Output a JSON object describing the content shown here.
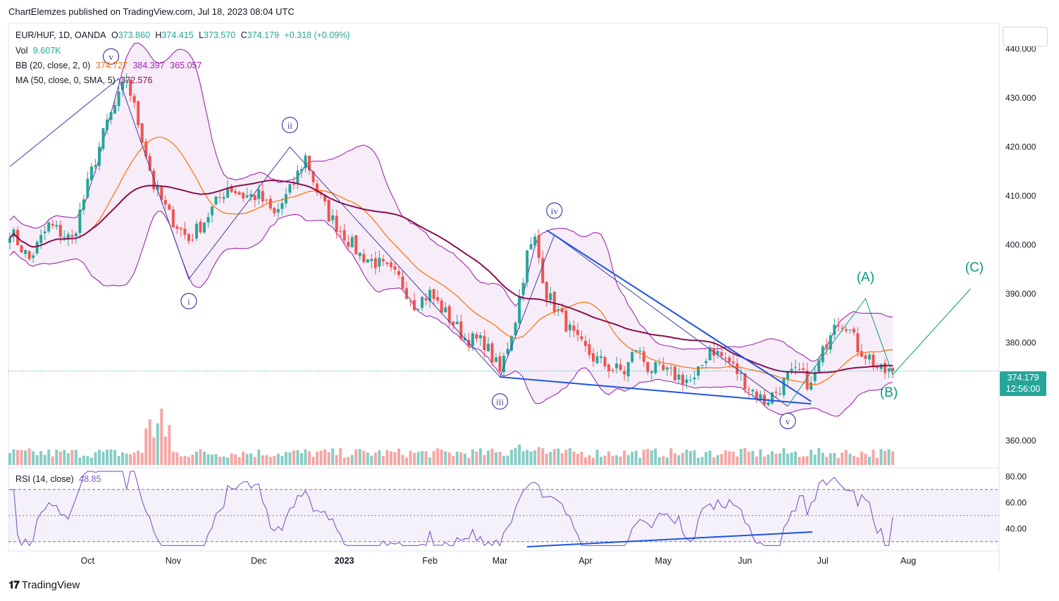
{
  "publisher": "ChartElemzes published on TradingView.com, Jul 18, 2023 08:04 UTC",
  "brand": "TradingView",
  "legend": {
    "symbol": "EUR/HUF, 1D, OANDA",
    "o_label": "O",
    "o": "373.860",
    "h_label": "H",
    "h": "374.415",
    "l_label": "L",
    "l": "373.570",
    "c_label": "C",
    "c": "374.179",
    "change": "+0.318 (+0.09%)",
    "vol_label": "Vol",
    "vol": "9.607K",
    "bb_label": "BB (20, close, 2, 0)",
    "bb_basis": "374.727",
    "bb_upper": "384.397",
    "bb_lower": "365.057",
    "ma_label": "MA (50, close, 0, SMA, 5)",
    "ma": "372.576",
    "rsi_label": "RSI (14, close)",
    "rsi": "48.85"
  },
  "price_badge": {
    "price": "374.179",
    "countdown": "12:56:00"
  },
  "colors": {
    "up": "#26a69a",
    "down": "#ef5350",
    "up_vol": "#86cdc5",
    "down_vol": "#f5a6a4",
    "bb_band": "#9c27b0",
    "bb_fill": "#f3e5f5",
    "bb_basis": "#ff6d00",
    "ma": "#880e4f",
    "rsi": "#7e57c2",
    "wave": "#3f3fa5",
    "trend": "#1e53e5",
    "abc": "#089981"
  },
  "chart_data": {
    "type": "candlestick",
    "title": "EUR/HUF, 1D, OANDA",
    "price_axis": {
      "ylim": [
        355,
        445
      ],
      "ticks": [
        360,
        370,
        380,
        390,
        400,
        410,
        420,
        430,
        440
      ],
      "tick_labels": [
        "360.000",
        "370.000",
        "380.000",
        "390.000",
        "400.000",
        "410.000",
        "420.000",
        "430.000",
        "440.000"
      ]
    },
    "rsi_axis": {
      "ylim": [
        25,
        85
      ],
      "ticks": [
        40,
        60,
        80
      ],
      "tick_labels": [
        "40.00",
        "60.00",
        "80.00"
      ],
      "upper_band": 70,
      "lower_band": 30
    },
    "time_axis": {
      "labels": [
        "Oct",
        "Nov",
        "Dec",
        "2023",
        "Feb",
        "Mar",
        "Apr",
        "May",
        "Jun",
        "Jul",
        "Aug"
      ],
      "label_days": [
        20,
        42,
        64,
        86,
        108,
        126,
        148,
        168,
        189,
        209,
        231
      ]
    },
    "close_path": [
      [
        0,
        403
      ],
      [
        5,
        397
      ],
      [
        10,
        404
      ],
      [
        16,
        401
      ],
      [
        21,
        415
      ],
      [
        25,
        425
      ],
      [
        28,
        430
      ],
      [
        30,
        434
      ],
      [
        34,
        422
      ],
      [
        37,
        412
      ],
      [
        41,
        406
      ],
      [
        46,
        401
      ],
      [
        50,
        405
      ],
      [
        56,
        412
      ],
      [
        60,
        410
      ],
      [
        64,
        410
      ],
      [
        68,
        406
      ],
      [
        72,
        411
      ],
      [
        76,
        418
      ],
      [
        79,
        411
      ],
      [
        82,
        406
      ],
      [
        86,
        402
      ],
      [
        90,
        398
      ],
      [
        95,
        396
      ],
      [
        100,
        393
      ],
      [
        104,
        388
      ],
      [
        108,
        390
      ],
      [
        112,
        386
      ],
      [
        117,
        381
      ],
      [
        122,
        380
      ],
      [
        126,
        374
      ],
      [
        130,
        385
      ],
      [
        133,
        398
      ],
      [
        135,
        401
      ],
      [
        138,
        390
      ],
      [
        142,
        385
      ],
      [
        146,
        380
      ],
      [
        150,
        377
      ],
      [
        154,
        375
      ],
      [
        158,
        374
      ],
      [
        161,
        379
      ],
      [
        164,
        375
      ],
      [
        168,
        374
      ],
      [
        172,
        373
      ],
      [
        176,
        372
      ],
      [
        180,
        379
      ],
      [
        185,
        376
      ],
      [
        190,
        371
      ],
      [
        194,
        368
      ],
      [
        197,
        370
      ],
      [
        200,
        373
      ],
      [
        203,
        374
      ],
      [
        206,
        371
      ],
      [
        209,
        378
      ],
      [
        212,
        385
      ],
      [
        215,
        384
      ],
      [
        218,
        379
      ],
      [
        221,
        377
      ],
      [
        224,
        374
      ],
      [
        227,
        374.2
      ]
    ],
    "volume": {
      "note": "daily volume histogram",
      "max_visible": "~58K"
    },
    "annotations": {
      "elliott_impulse": [
        "i",
        "ii",
        "iii",
        "iv",
        "v"
      ],
      "top_label": "v",
      "corrective": [
        "(A)",
        "(B)",
        "(C)"
      ]
    }
  }
}
